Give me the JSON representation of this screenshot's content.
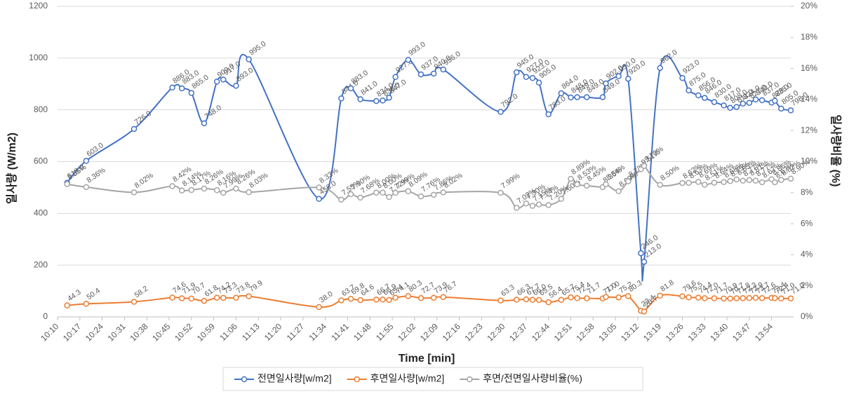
{
  "chart_data": {
    "type": "line",
    "x_label": "Time  [min]",
    "y_label": "일사량 (W/m2)",
    "y2_label": "일사량비율 (%)",
    "x": [
      "10:13",
      "10:19",
      "10:34",
      "10:46",
      "10:49",
      "10:52",
      "10:56",
      "11:00",
      "11:02",
      "11:06",
      "11:10",
      "11:32",
      "11:39",
      "11:42",
      "11:45",
      "11:50",
      "11:52",
      "11:54",
      "11:56",
      "12:00",
      "12:04",
      "12:08",
      "12:11",
      "12:29",
      "12:34",
      "12:37",
      "12:39",
      "12:41",
      "12:44",
      "12:48",
      "12:51",
      "12:53",
      "12:56",
      "13:01",
      "13:02",
      "13:06",
      "13:09",
      "13:13",
      "13:14",
      "13:19",
      "13:26",
      "13:28",
      "13:31",
      "13:33",
      "13:36",
      "13:39",
      "13:41",
      "13:43",
      "13:45",
      "13:47",
      "13:49",
      "13:51",
      "13:54",
      "13:55",
      "13:57",
      "14:00"
    ],
    "xlim": [
      "10:10",
      "14:00"
    ],
    "xticks": [
      "10:10",
      "10:17",
      "10:24",
      "10:31",
      "10:38",
      "10:45",
      "10:52",
      "10:59",
      "11:06",
      "11:13",
      "11:20",
      "11:27",
      "11:34",
      "11:41",
      "11:48",
      "11:55",
      "12:02",
      "12:09",
      "12:16",
      "12:23",
      "12:30",
      "12:37",
      "12:44",
      "12:51",
      "12:58",
      "13:05",
      "13:12",
      "13:19",
      "13:26",
      "13:33",
      "13:40",
      "13:47",
      "13:54"
    ],
    "ylim": [
      0,
      1200
    ],
    "yticks": [
      0,
      200,
      400,
      600,
      800,
      1000,
      1200
    ],
    "y2lim": [
      0,
      20
    ],
    "y2ticks": [
      {
        "value": 0,
        "label": "0%"
      },
      {
        "value": 2,
        "label": "2%"
      },
      {
        "value": 4,
        "label": "4%"
      },
      {
        "value": 6,
        "label": "6%"
      },
      {
        "value": 8,
        "label": "8%"
      },
      {
        "value": 10,
        "label": "10%"
      },
      {
        "value": 12,
        "label": "12%"
      },
      {
        "value": 14,
        "label": "14%"
      },
      {
        "value": 16,
        "label": "16%"
      },
      {
        "value": 18,
        "label": "18%"
      },
      {
        "value": 20,
        "label": "20%"
      }
    ],
    "grid": true,
    "legend": "bottom",
    "series": [
      {
        "name": "전면일사량[w/m2]",
        "color": "#4472c4",
        "values": [
          518,
          603,
          726,
          886,
          883,
          865,
          748,
          909,
          917,
          893,
          995,
          456,
          844,
          883,
          841,
          834,
          836,
          847,
          927,
          993,
          937,
          940,
          956,
          792,
          945,
          927,
          923,
          905,
          783,
          864,
          848,
          849,
          849,
          849,
          902,
          930,
          920,
          246,
          213,
          962,
          923,
          875,
          856,
          846,
          830,
          817,
          808,
          811,
          824,
          827,
          840,
          837,
          828,
          835,
          805,
          798
        ],
        "value_labels": [
          "518.0",
          "603.0",
          "726.0",
          "886.0",
          "883.0",
          "865.0",
          "748.0",
          "909.0",
          "917.0",
          "893.0",
          "995.0",
          "456.0",
          "844.0",
          "883.0",
          "841.0",
          "834.0",
          "836.0",
          "847.0",
          "927.0",
          "993.0",
          "937.0",
          "940.0",
          "956.0",
          "792.0",
          "945.0",
          "927.0",
          "923.0",
          "905.0",
          "783.0",
          "864.0",
          "848.0",
          "849.0",
          "849.0",
          "849.0",
          "902.0",
          "930.0",
          "920.0",
          "246.0",
          "213.0",
          "962.0",
          "923.0",
          "875.0",
          "856.0",
          "846.0",
          "830.0",
          "817.0",
          "808.0",
          "811.0",
          "824.0",
          "827.0",
          "840.0",
          "837.0",
          "828.0",
          "835.0",
          "805.0",
          "798.0"
        ]
      },
      {
        "name": "후면일사량[w/m2]",
        "color": "#ed7d31",
        "values": [
          44.3,
          50.4,
          58.2,
          74.6,
          71.9,
          70.7,
          61.8,
          74.2,
          73.3,
          73.8,
          79.9,
          38.0,
          63.7,
          69.8,
          64.6,
          66.7,
          66.9,
          65.4,
          74.1,
          80.3,
          72.7,
          73.9,
          76.7,
          63.3,
          66.3,
          67.7,
          66.0,
          65.5,
          56.4,
          65.7,
          75.4,
          72.4,
          71.7,
          71.0,
          77.0,
          75.2,
          80.3,
          23.4,
          20.7,
          81.8,
          79.6,
          75.5,
          74.4,
          72.0,
          71.7,
          70.9,
          70.7,
          71.8,
          72.3,
          72.9,
          73.7,
          72.6,
          73.4,
          72.4,
          71.0,
          71.0
        ],
        "value_labels": [
          "44.3",
          "50.4",
          "58.2",
          "74.6",
          "71.9",
          "70.7",
          "61.8",
          "74.2",
          "73.3",
          "73.8",
          "79.9",
          "38.0",
          "63.7",
          "69.8",
          "64.6",
          "66.7",
          "66.9",
          "65.4",
          "74.1",
          "80.3",
          "72.7",
          "73.9",
          "76.7",
          "63.3",
          "66.3",
          "67.7",
          "66.0",
          "65.5",
          "56.4",
          "65.7",
          "75.4",
          "72.4",
          "71.7",
          "71.0",
          "77.0",
          "75.2",
          "80.3",
          "23.4",
          "20.7",
          "81.8",
          "79.6",
          "75.5",
          "74.4",
          "72.0",
          "71.7",
          "70.9",
          "70.7",
          "71.8",
          "72.3",
          "72.9",
          "73.7",
          "72.6",
          "73.4",
          "72.4",
          "71.0",
          "71.0"
        ]
      },
      {
        "name": "후면/전면일사량비율(%)",
        "color": "#a5a5a5",
        "axis": "y2",
        "values": [
          8.55,
          8.36,
          8.02,
          8.42,
          8.14,
          8.17,
          8.26,
          8.16,
          7.99,
          8.26,
          8.03,
          8.33,
          7.55,
          7.9,
          7.68,
          8.0,
          8.0,
          7.72,
          7.99,
          8.09,
          7.76,
          7.86,
          8.02,
          7.99,
          7.02,
          7.3,
          7.15,
          7.24,
          7.2,
          7.6,
          8.89,
          8.53,
          8.45,
          8.36,
          8.54,
          8.09,
          8.73,
          9.51,
          9.72,
          8.5,
          8.62,
          8.63,
          8.69,
          8.51,
          8.64,
          8.68,
          8.75,
          8.85,
          8.77,
          8.81,
          8.77,
          8.67,
          8.86,
          8.67,
          8.82,
          8.9
        ],
        "value_labels": [
          "8.55%",
          "8.36%",
          "8.02%",
          "8.42%",
          "8.14%",
          "8.17%",
          "8.26%",
          "8.16%",
          "7.99%",
          "8.26%",
          "8.03%",
          "8.33%",
          "7.55%",
          "7.90%",
          "7.68%",
          "8.00%",
          "8.00%",
          "7.72%",
          "7.99%",
          "8.09%",
          "7.76%",
          "7.86%",
          "8.02%",
          "7.99%",
          "7.02%",
          "7.30%",
          "7.15%",
          "7.24%",
          "7.20%",
          "7.60%",
          "8.89%",
          "8.53%",
          "8.45%",
          "8.36%",
          "8.54%",
          "8.09%",
          "8.73%",
          "9.51%",
          "9.72%",
          "8.50%",
          "8.62%",
          "8.63%",
          "8.69%",
          "8.51%",
          "8.64%",
          "8.68%",
          "8.75%",
          "8.85%",
          "8.77%",
          "8.81%",
          "8.77%",
          "8.67%",
          "8.86%",
          "8.67%",
          "8.82%",
          "8.90%"
        ]
      }
    ]
  }
}
